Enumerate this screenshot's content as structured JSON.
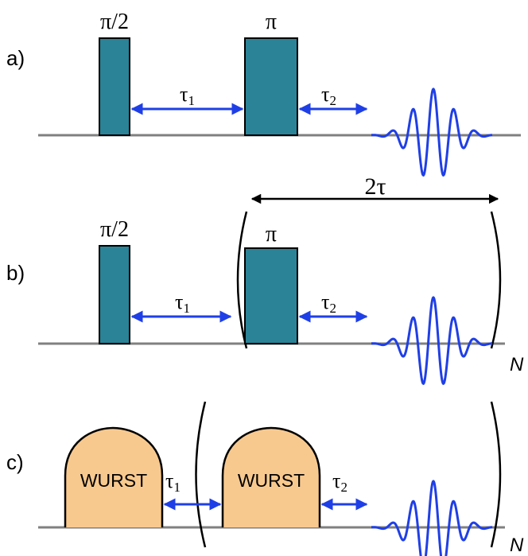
{
  "colors": {
    "pulse_fill": "#2b8397",
    "pulse_stroke": "#000000",
    "wurst_fill": "#f8c98e",
    "baseline": "#808080",
    "arrow_blue": "#1f3fe6",
    "echo": "#1f3fe6"
  },
  "panels": {
    "a": {
      "label": "a)",
      "pulse1_label": "π/2",
      "pulse2_label": "π",
      "tau1": "τ",
      "tau1_sub": "1",
      "tau2": "τ",
      "tau2_sub": "2"
    },
    "b": {
      "label": "b)",
      "pulse1_label": "π/2",
      "pulse2_label": "π",
      "tau1": "τ",
      "tau1_sub": "1",
      "tau2": "τ",
      "tau2_sub": "2",
      "span_label": "2τ",
      "repeat": "N"
    },
    "c": {
      "label": "c)",
      "pulse1_label": "WURST",
      "pulse2_label": "WURST",
      "tau1": "τ",
      "tau1_sub": "1",
      "tau2": "τ",
      "tau2_sub": "2",
      "repeat": "N"
    }
  }
}
